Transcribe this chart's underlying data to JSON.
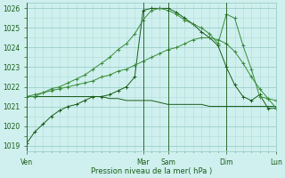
{
  "bg_color": "#cff0ee",
  "grid_color_minor": "#b0ddd8",
  "grid_color_major": "#90c8c4",
  "line_color_dark": "#1a5c1a",
  "line_color_mid": "#3a8c3a",
  "ylabel_min": 1019,
  "ylabel_max": 1026,
  "yticks": [
    1019,
    1020,
    1021,
    1022,
    1023,
    1024,
    1025,
    1026
  ],
  "xlabel": "Pression niveau de la mer( hPa )",
  "xtick_labels": [
    "Ven",
    "Mar",
    "Sam",
    "Dim",
    "Lun"
  ],
  "xtick_positions": [
    0,
    14,
    17,
    24,
    30
  ],
  "vline_positions": [
    0,
    14,
    17,
    24,
    30
  ],
  "n_points": 31,
  "series1_x": [
    0,
    1,
    2,
    3,
    4,
    5,
    6,
    7,
    8,
    9,
    10,
    11,
    12,
    13,
    14,
    15,
    16,
    17,
    18,
    19,
    20,
    21,
    22,
    23,
    24,
    25,
    26,
    27,
    28,
    29,
    30
  ],
  "series1_y": [
    1019.1,
    1019.7,
    1020.1,
    1020.5,
    1020.8,
    1021.0,
    1021.1,
    1021.3,
    1021.5,
    1021.5,
    1021.6,
    1021.8,
    1022.0,
    1022.5,
    1025.9,
    1026.0,
    1026.0,
    1026.0,
    1025.8,
    1025.5,
    1025.2,
    1024.8,
    1024.5,
    1024.1,
    1023.0,
    1022.1,
    1021.5,
    1021.3,
    1021.6,
    1020.9,
    1020.9
  ],
  "series2_x": [
    0,
    1,
    2,
    3,
    4,
    5,
    6,
    7,
    8,
    9,
    10,
    11,
    12,
    13,
    14,
    15,
    16,
    17,
    18,
    19,
    20,
    21,
    22,
    23,
    24,
    25,
    26,
    27,
    28,
    29,
    30
  ],
  "series2_y": [
    1021.5,
    1021.5,
    1021.5,
    1021.5,
    1021.5,
    1021.5,
    1021.5,
    1021.5,
    1021.5,
    1021.5,
    1021.4,
    1021.4,
    1021.3,
    1021.3,
    1021.3,
    1021.3,
    1021.2,
    1021.1,
    1021.1,
    1021.1,
    1021.1,
    1021.1,
    1021.0,
    1021.0,
    1021.0,
    1021.0,
    1021.0,
    1021.0,
    1021.0,
    1021.0,
    1021.0
  ],
  "series3_x": [
    0,
    1,
    2,
    3,
    4,
    5,
    6,
    7,
    8,
    9,
    10,
    11,
    12,
    13,
    14,
    15,
    16,
    17,
    18,
    19,
    20,
    21,
    22,
    23,
    24,
    25,
    26,
    27,
    28,
    29,
    30
  ],
  "series3_y": [
    1021.5,
    1021.6,
    1021.7,
    1021.8,
    1021.9,
    1022.0,
    1022.1,
    1022.2,
    1022.3,
    1022.5,
    1022.6,
    1022.8,
    1022.9,
    1023.1,
    1023.3,
    1023.5,
    1023.7,
    1023.9,
    1024.0,
    1024.2,
    1024.4,
    1024.5,
    1024.5,
    1024.4,
    1024.2,
    1023.8,
    1023.2,
    1022.5,
    1021.9,
    1021.4,
    1021.3
  ],
  "series4_x": [
    0,
    1,
    2,
    3,
    4,
    5,
    6,
    7,
    8,
    9,
    10,
    11,
    12,
    13,
    14,
    15,
    16,
    17,
    18,
    19,
    20,
    21,
    22,
    23,
    24,
    25,
    26,
    27,
    28,
    29,
    30
  ],
  "series4_y": [
    1021.5,
    1021.5,
    1021.7,
    1021.9,
    1022.0,
    1022.2,
    1022.4,
    1022.6,
    1022.9,
    1023.2,
    1023.5,
    1023.9,
    1024.2,
    1024.7,
    1025.4,
    1025.9,
    1026.0,
    1025.9,
    1025.7,
    1025.4,
    1025.2,
    1025.0,
    1024.7,
    1024.2,
    1025.7,
    1025.5,
    1024.1,
    1022.9,
    1021.5,
    1021.4,
    1020.9
  ]
}
